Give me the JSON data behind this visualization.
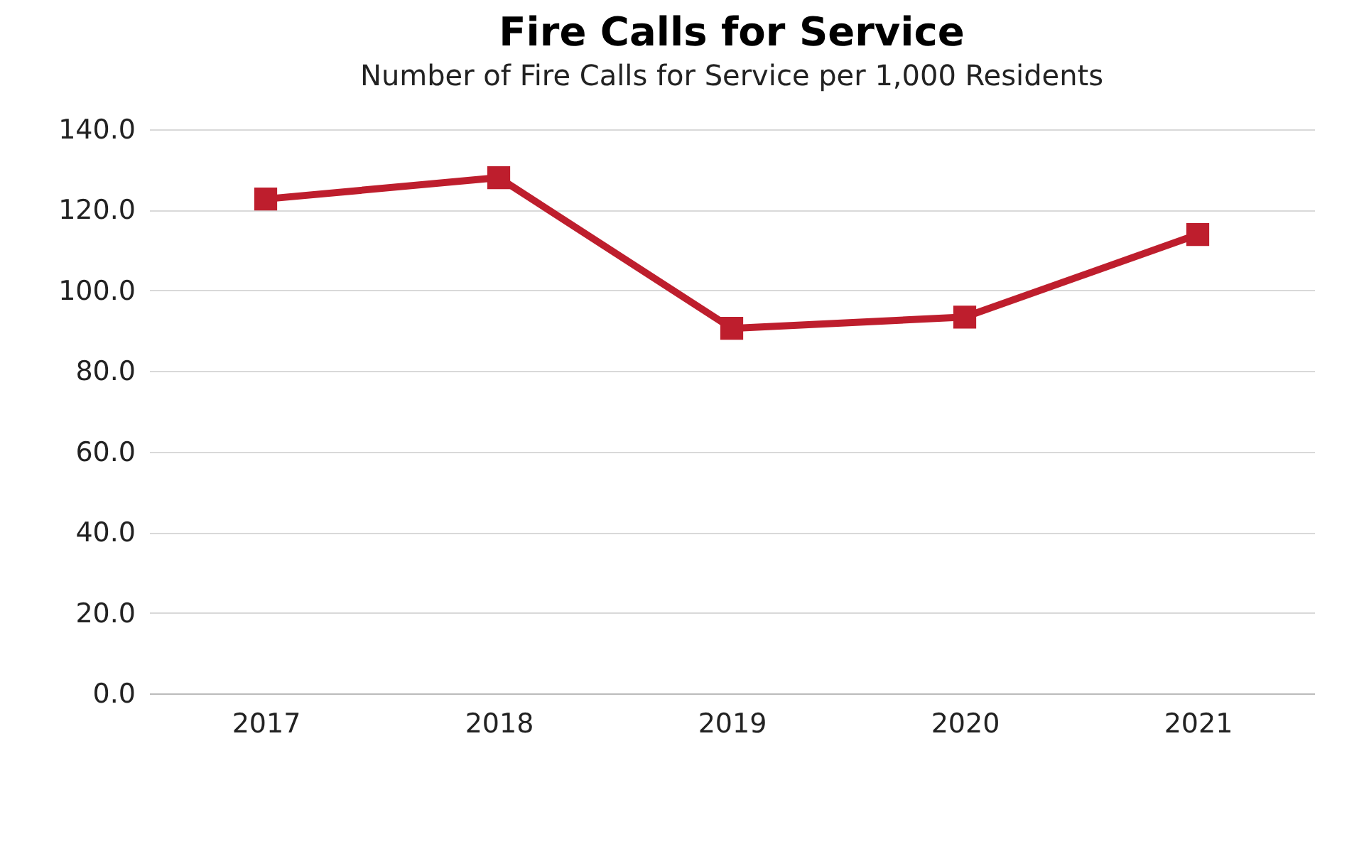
{
  "chart_data": {
    "type": "line",
    "title": "Fire Calls for Service",
    "subtitle": "Number of Fire Calls for Service per 1,000 Residents",
    "categories": [
      "2017",
      "2018",
      "2019",
      "2020",
      "2021"
    ],
    "series": [
      {
        "color": "#be1e2d",
        "values": [
          122.7,
          128.0,
          90.6,
          93.4,
          113.9
        ]
      }
    ],
    "ylim": [
      0,
      140
    ],
    "yticks": [
      {
        "value": 0,
        "label": "0.0"
      },
      {
        "value": 20,
        "label": "20.0"
      },
      {
        "value": 40,
        "label": "40.0"
      },
      {
        "value": 60,
        "label": "60.0"
      },
      {
        "value": 80,
        "label": "80.0"
      },
      {
        "value": 100,
        "label": "100.0"
      },
      {
        "value": 120,
        "label": "120.0"
      },
      {
        "value": 140,
        "label": "140.0"
      }
    ],
    "grid": "y",
    "marker": "square",
    "line_style": "solid"
  }
}
